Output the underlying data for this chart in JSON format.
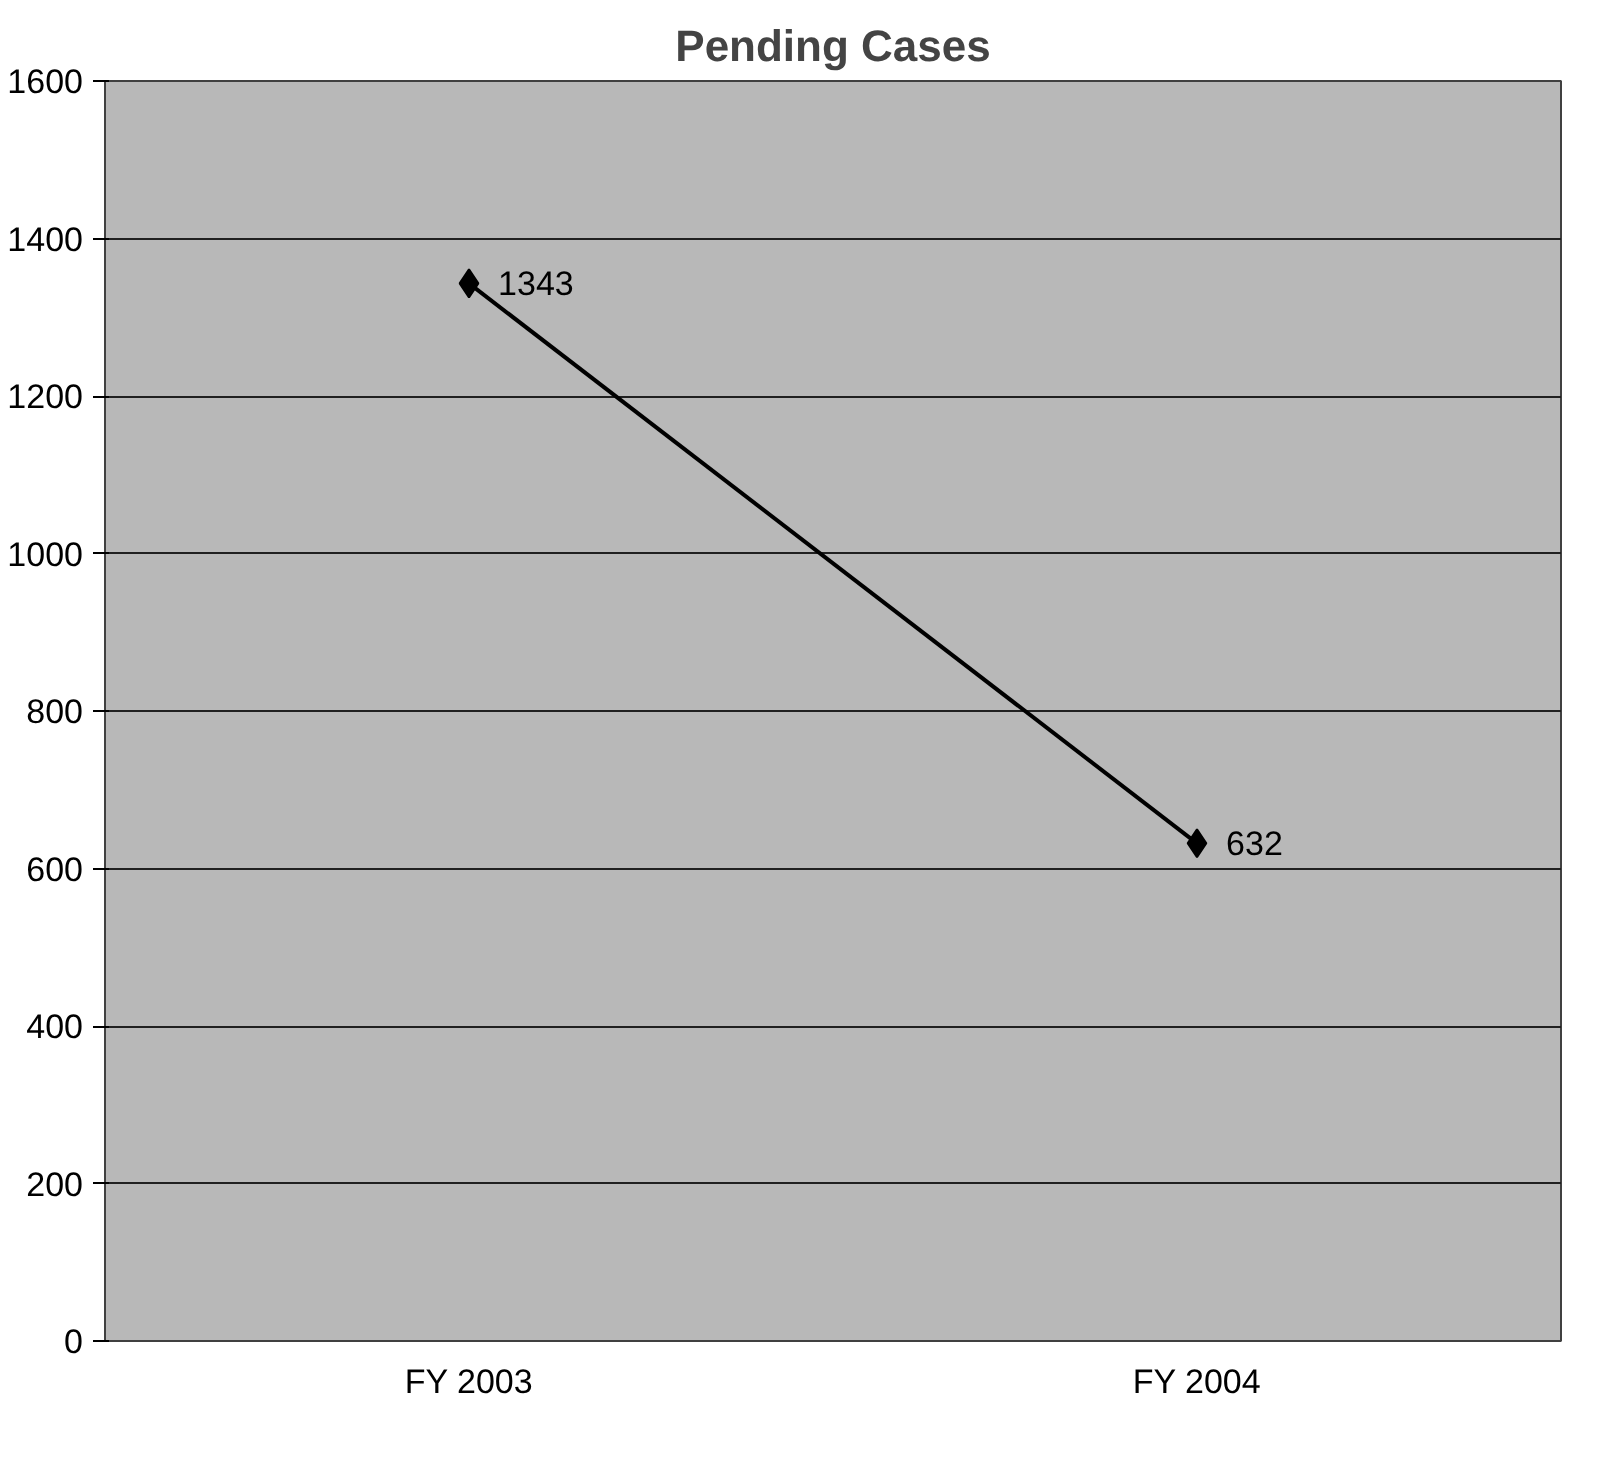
{
  "chart_data": {
    "type": "line",
    "title": "Pending Cases",
    "categories": [
      "FY 2003",
      "FY 2004"
    ],
    "series": [
      {
        "color": "#000000",
        "values": [
          1343,
          632
        ]
      }
    ],
    "ylim": [
      0,
      1600
    ],
    "yticks": [
      0,
      200,
      400,
      600,
      800,
      1000,
      1200,
      1400,
      1600
    ],
    "grid": "y",
    "marker": "diamond",
    "line_style": "solid",
    "data_labels": true
  }
}
